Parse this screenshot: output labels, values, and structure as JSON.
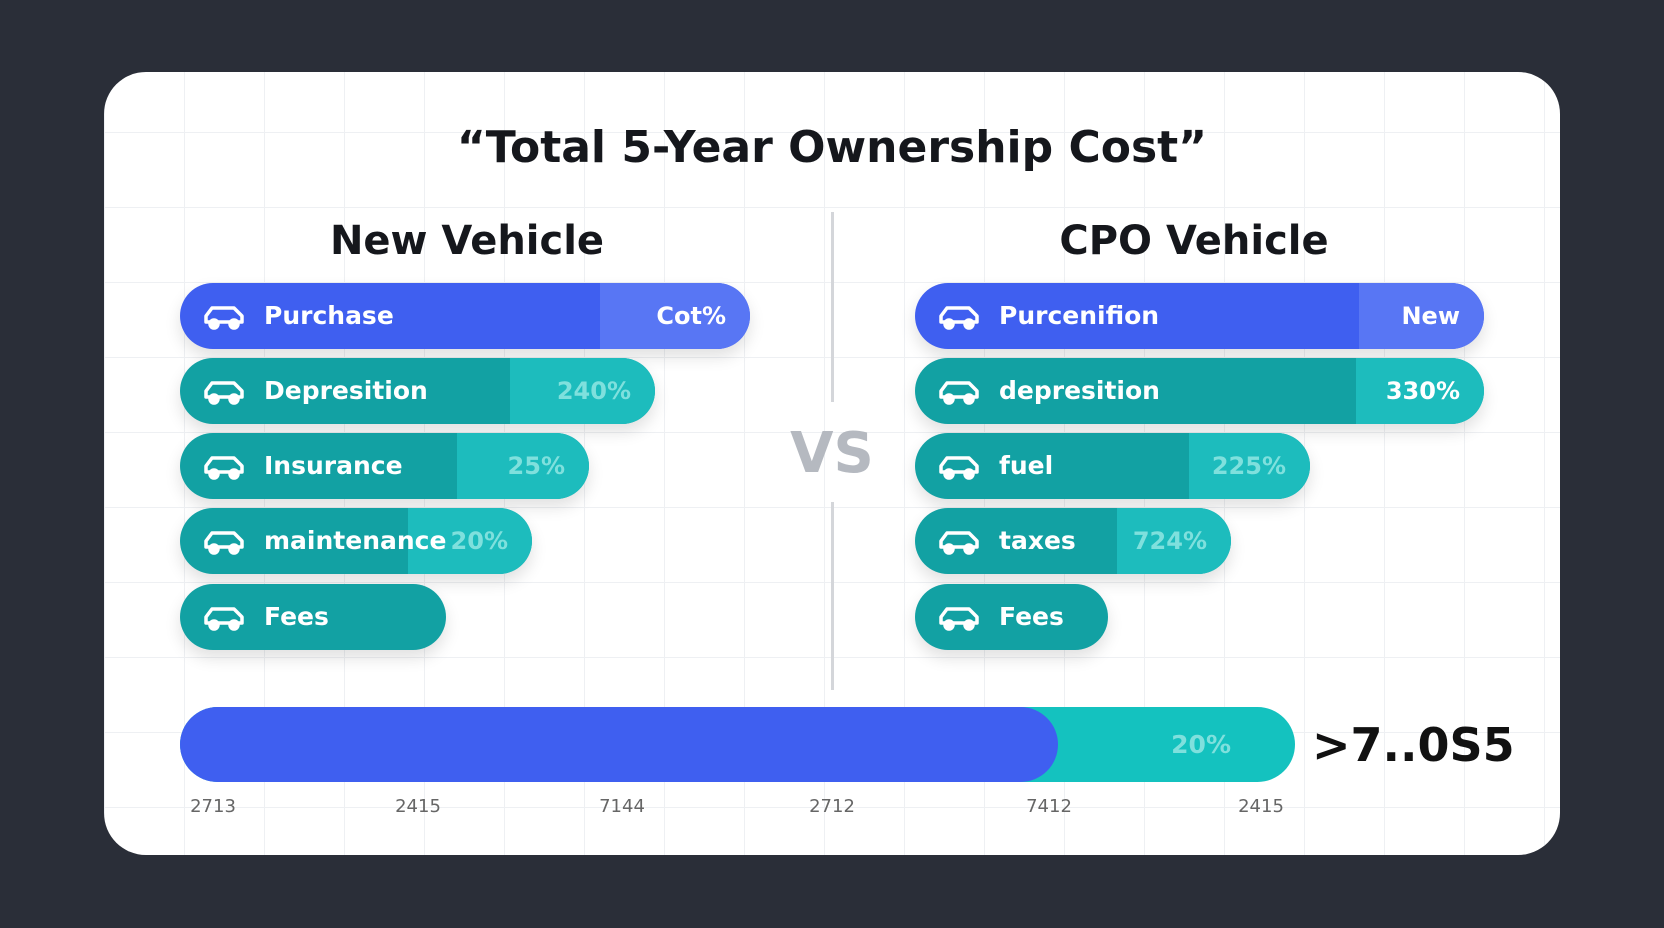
{
  "title": "“Total 5-Year Ownership Cost”",
  "vs": "VS",
  "panels": [
    {
      "heading": "New Vehicle",
      "rows": [
        {
          "label": "Purchase",
          "value": "Cot%"
        },
        {
          "label": "Depresition",
          "value": "240%"
        },
        {
          "label": "Insurance",
          "value": "25%"
        },
        {
          "label": "maintenance",
          "value": "20%"
        },
        {
          "label": "Fees"
        }
      ]
    },
    {
      "heading": "CPO Vehicle",
      "rows": [
        {
          "label": "Purcenifion",
          "value": "New"
        },
        {
          "label": "depresition",
          "value": "330%"
        },
        {
          "label": "fuel",
          "value": "225%"
        },
        {
          "label": "taxes",
          "value": "724%"
        },
        {
          "label": "Fees"
        }
      ]
    }
  ],
  "total": {
    "value": "20%",
    "result": ">7..0S5"
  },
  "axis_labels": [
    "2713",
    "2415",
    "7144",
    "2712",
    "7412",
    "2415"
  ]
}
